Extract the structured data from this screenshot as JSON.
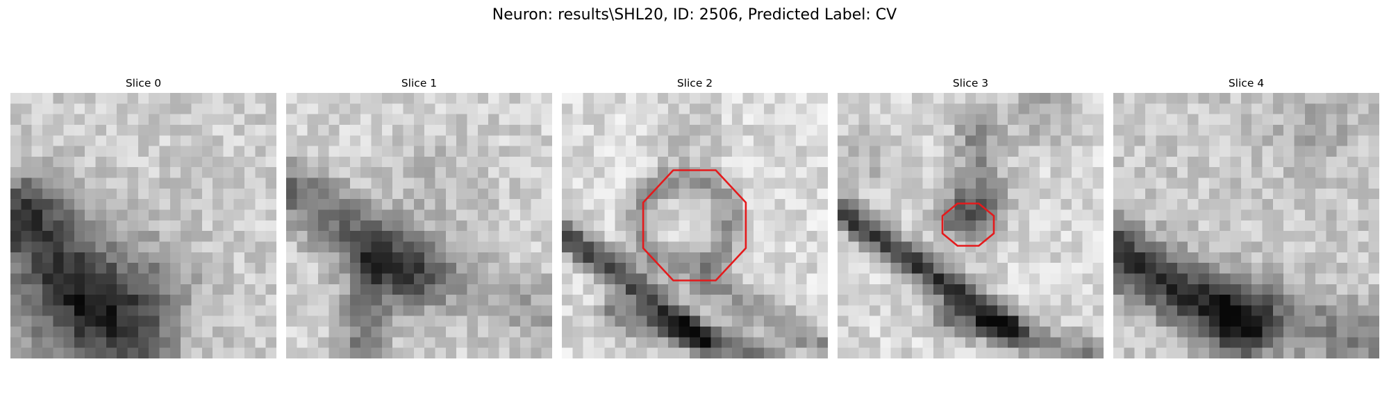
{
  "figure": {
    "title": "Neuron: results\\SHL20, ID: 2506, Predicted Label: CV"
  },
  "outline_color": "#e41a1c",
  "colormap": "gray",
  "panels": [
    {
      "title": "Slice 0",
      "has_outline": false
    },
    {
      "title": "Slice 1",
      "has_outline": false
    },
    {
      "title": "Slice 2",
      "has_outline": true
    },
    {
      "title": "Slice 3",
      "has_outline": true
    },
    {
      "title": "Slice 4",
      "has_outline": false
    }
  ]
}
